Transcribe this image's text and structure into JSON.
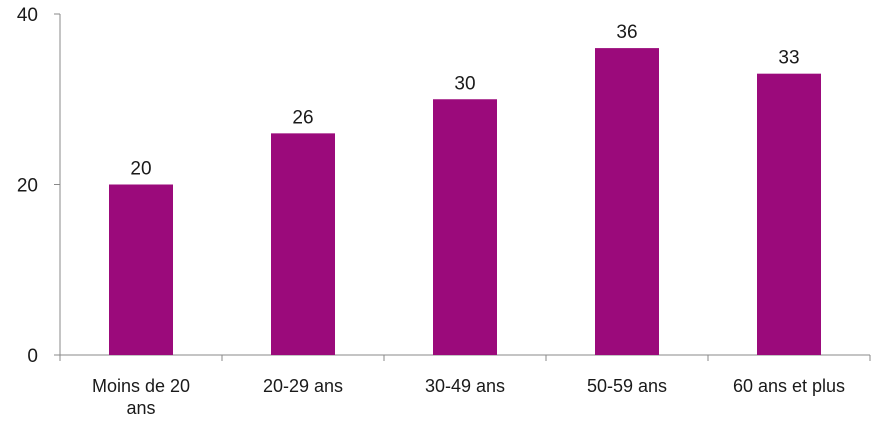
{
  "chart_data": {
    "type": "bar",
    "title": "",
    "xlabel": "",
    "ylabel": "",
    "ylim": [
      0,
      40
    ],
    "yticks": [
      0,
      20,
      40
    ],
    "grid": false,
    "legend": "none",
    "bar_color": "#9b0a7b",
    "categories": [
      [
        "Moins de 20",
        "ans"
      ],
      [
        "20-29 ans"
      ],
      [
        "30-49 ans"
      ],
      [
        "50-59 ans"
      ],
      [
        "60 ans et plus"
      ]
    ],
    "values": [
      20,
      26,
      30,
      36,
      33
    ],
    "data_labels": [
      "20",
      "26",
      "30",
      "36",
      "33"
    ]
  }
}
